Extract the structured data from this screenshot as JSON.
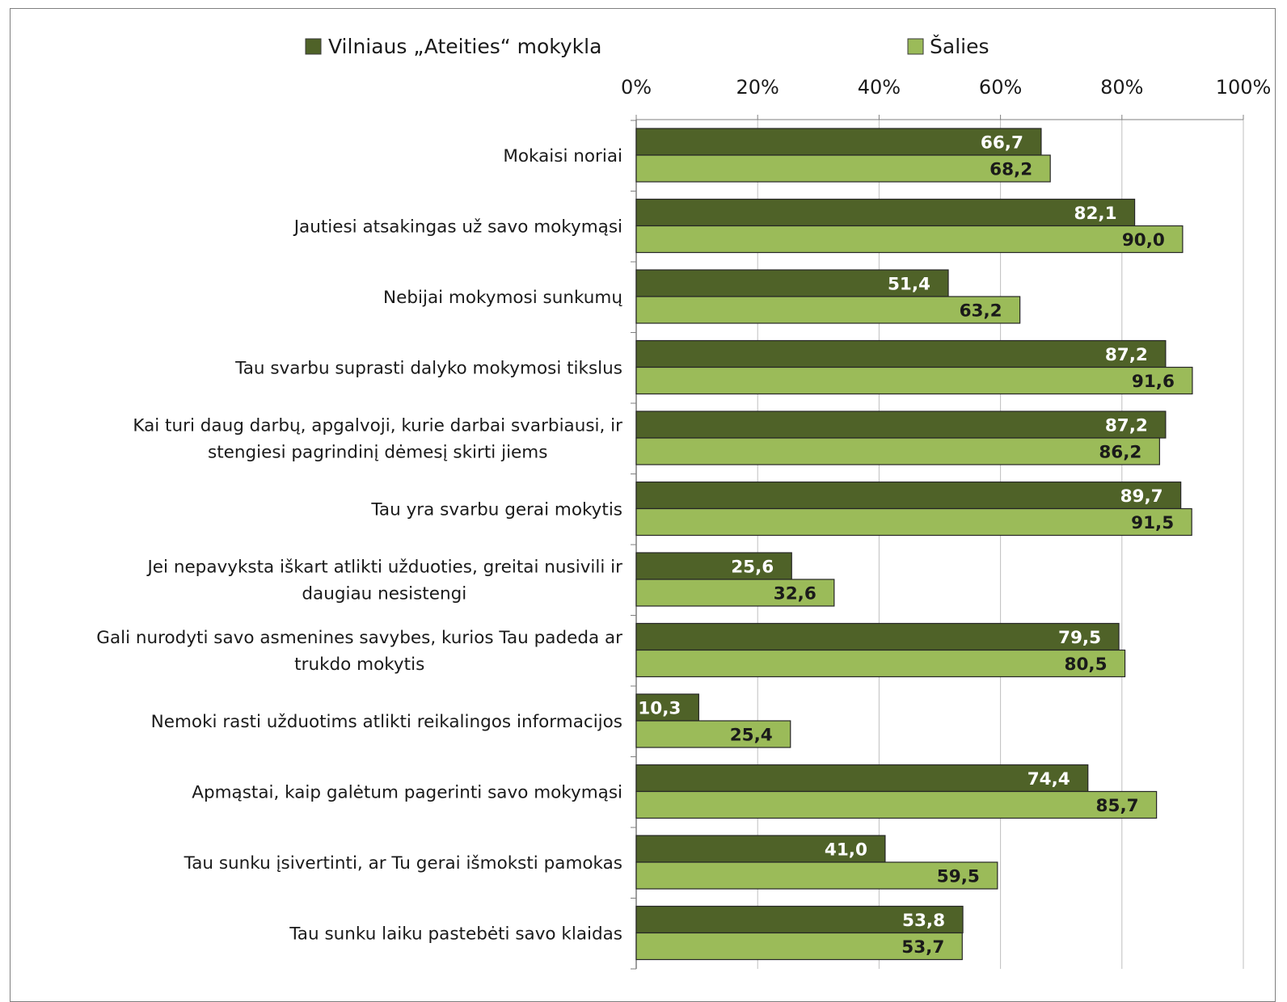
{
  "chart_data": {
    "type": "bar",
    "orientation": "horizontal",
    "categories": [
      [
        "Mokaisi noriai"
      ],
      [
        "Jautiesi atsakingas už savo mokymąsi"
      ],
      [
        "Nebijai mokymosi sunkumų"
      ],
      [
        "Tau svarbu suprasti dalyko mokymosi tikslus"
      ],
      [
        "Kai turi daug darbų, apgalvoji, kurie darbai svarbiausi, ir",
        "stengiesi pagrindinį dėmesį skirti jiems"
      ],
      [
        "Tau yra svarbu gerai mokytis"
      ],
      [
        "Jei nepavyksta iškart atlikti užduoties, greitai nusivili ir",
        "daugiau nesistengi"
      ],
      [
        "Gali nurodyti savo asmenines savybes, kurios Tau padeda ar",
        "trukdo mokytis"
      ],
      [
        "Nemoki rasti užduotims atlikti reikalingos informacijos"
      ],
      [
        "Apmąstai, kaip galėtum pagerinti savo mokymąsi"
      ],
      [
        "Tau sunku įsivertinti, ar Tu gerai išmoksti pamokas"
      ],
      [
        "Tau sunku laiku pastebėti savo klaidas"
      ]
    ],
    "series": [
      {
        "name": "Vilniaus „Ateities“ mokykla",
        "color": "#4f6228",
        "values": [
          66.7,
          82.1,
          51.4,
          87.2,
          87.2,
          89.7,
          25.6,
          79.5,
          10.3,
          74.4,
          41.0,
          53.8
        ],
        "labels": [
          "66,7",
          "82,1",
          "51,4",
          "87,2",
          "87,2",
          "89,7",
          "25,6",
          "79,5",
          "10,3",
          "74,4",
          "41,0",
          "53,8"
        ]
      },
      {
        "name": "Šalies",
        "color": "#9bbb59",
        "values": [
          68.2,
          90.0,
          63.2,
          91.6,
          86.2,
          91.5,
          32.6,
          80.5,
          25.4,
          85.7,
          59.5,
          53.7
        ],
        "labels": [
          "68,2",
          "90,0",
          "63,2",
          "91,6",
          "86,2",
          "91,5",
          "32,6",
          "80,5",
          "25,4",
          "85,7",
          "59,5",
          "53,7"
        ]
      }
    ],
    "x_ticks": [
      "0%",
      "20%",
      "40%",
      "60%",
      "80%",
      "100%"
    ],
    "xlim": [
      0,
      100
    ],
    "x_axis_position": "top",
    "grid": true,
    "legend_position": "top"
  }
}
